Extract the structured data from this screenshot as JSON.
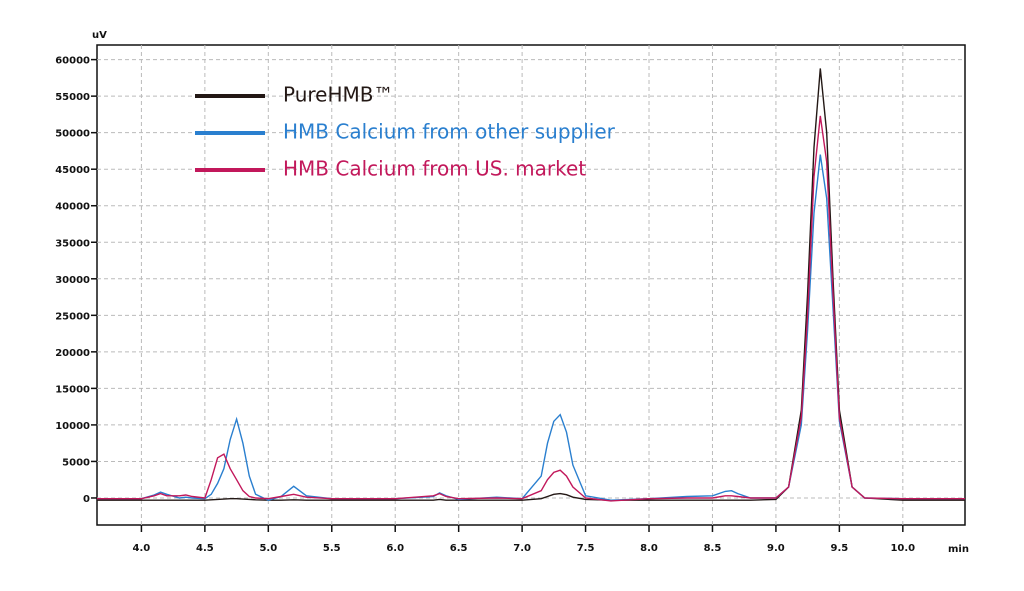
{
  "chart_data": {
    "type": "line",
    "y_label": "uV",
    "x_label": "min",
    "xlim": [
      3.65,
      10.49
    ],
    "ylim": [
      -3700,
      62000
    ],
    "grid": true,
    "legend": "upper left",
    "xticks": [
      {
        "value": 4.0,
        "label": "4.0"
      },
      {
        "value": 4.5,
        "label": "4.5"
      },
      {
        "value": 5.0,
        "label": "5.0"
      },
      {
        "value": 5.5,
        "label": "5.5"
      },
      {
        "value": 6.0,
        "label": "6.0"
      },
      {
        "value": 6.5,
        "label": "6.5"
      },
      {
        "value": 7.0,
        "label": "7.0"
      },
      {
        "value": 7.5,
        "label": "7.5"
      },
      {
        "value": 8.0,
        "label": "8.0"
      },
      {
        "value": 8.5,
        "label": "8.5"
      },
      {
        "value": 9.0,
        "label": "9.0"
      },
      {
        "value": 9.5,
        "label": "9.5"
      },
      {
        "value": 10.0,
        "label": "10.0"
      }
    ],
    "yticks": [
      0,
      5000,
      10000,
      15000,
      20000,
      25000,
      30000,
      35000,
      40000,
      45000,
      50000,
      55000,
      60000
    ],
    "x": [
      3.65,
      4.0,
      4.1,
      4.15,
      4.2,
      4.3,
      4.35,
      4.4,
      4.5,
      4.55,
      4.6,
      4.65,
      4.7,
      4.75,
      4.8,
      4.85,
      4.9,
      5.0,
      5.1,
      5.2,
      5.3,
      5.5,
      6.0,
      6.3,
      6.35,
      6.4,
      6.5,
      6.8,
      7.0,
      7.15,
      7.2,
      7.25,
      7.3,
      7.35,
      7.4,
      7.5,
      7.7,
      8.0,
      8.3,
      8.5,
      8.6,
      8.65,
      8.7,
      8.8,
      9.0,
      9.1,
      9.2,
      9.25,
      9.3,
      9.35,
      9.4,
      9.45,
      9.5,
      9.6,
      9.7,
      10.0,
      10.49
    ],
    "series": [
      {
        "name": "PureHMB™",
        "color": "#231815",
        "values": [
          -300,
          -300,
          -300,
          -300,
          -300,
          -300,
          -300,
          -300,
          -300,
          -250,
          -200,
          -150,
          -100,
          -100,
          -150,
          -200,
          -250,
          -300,
          -300,
          -250,
          -300,
          -300,
          -300,
          -300,
          -200,
          -300,
          -300,
          -300,
          -300,
          -100,
          200,
          500,
          600,
          450,
          100,
          -200,
          -300,
          -300,
          -300,
          -300,
          -300,
          -300,
          -300,
          -300,
          -200,
          1500,
          12000,
          28000,
          48000,
          58800,
          50000,
          30000,
          12000,
          1500,
          0,
          -300,
          -300
        ]
      },
      {
        "name": "HMB Calcium from other supplier",
        "color": "#2a7fcf",
        "values": [
          -100,
          -100,
          400,
          800,
          500,
          0,
          100,
          0,
          -100,
          500,
          2000,
          4000,
          8000,
          10800,
          7500,
          3000,
          500,
          -300,
          200,
          1600,
          300,
          -100,
          -100,
          200,
          700,
          300,
          -200,
          100,
          -100,
          3000,
          7500,
          10500,
          11400,
          9000,
          4500,
          300,
          -300,
          -100,
          200,
          300,
          900,
          1000,
          600,
          0,
          0,
          1500,
          10000,
          23000,
          39000,
          47000,
          41000,
          26000,
          10500,
          1500,
          0,
          -100,
          -100
        ]
      },
      {
        "name": "HMB Calcium from US. market",
        "color": "#c2185b",
        "values": [
          -100,
          -100,
          300,
          600,
          300,
          300,
          400,
          200,
          0,
          2500,
          5500,
          6000,
          4000,
          2500,
          1000,
          200,
          0,
          -100,
          200,
          500,
          100,
          -100,
          -100,
          300,
          600,
          200,
          -100,
          0,
          -100,
          1000,
          2500,
          3500,
          3800,
          3000,
          1500,
          0,
          -400,
          -100,
          0,
          0,
          300,
          300,
          200,
          0,
          0,
          1500,
          11000,
          25000,
          44000,
          52300,
          46000,
          28000,
          11000,
          1500,
          0,
          -100,
          -100
        ]
      }
    ]
  }
}
